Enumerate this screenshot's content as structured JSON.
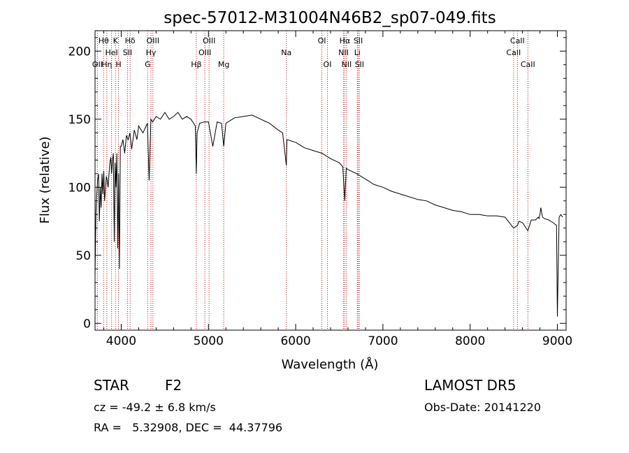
{
  "chart_data": {
    "type": "line",
    "title": "spec-57012-M31004N46B2_sp07-049.fits",
    "xlabel": "Wavelength (Å)",
    "ylabel": "Flux (relative)",
    "xlim": [
      3700,
      9100
    ],
    "ylim": [
      -5,
      215
    ],
    "xticks": [
      4000,
      5000,
      6000,
      7000,
      8000,
      9000
    ],
    "yticks": [
      0,
      50,
      100,
      150,
      200
    ],
    "xtick_labels": [
      "4000",
      "5000",
      "6000",
      "7000",
      "8000",
      "9000"
    ],
    "ytick_labels": [
      "0",
      "50",
      "100",
      "150",
      "200"
    ],
    "grid": false,
    "series": [
      {
        "x": [
          3700,
          3710,
          3720,
          3730,
          3740,
          3750,
          3760,
          3770,
          3780,
          3790,
          3800,
          3810,
          3820,
          3830,
          3840,
          3850,
          3860,
          3870,
          3880,
          3890,
          3900,
          3910,
          3920,
          3930,
          3940,
          3950,
          3960,
          3970,
          3980,
          3990,
          4000,
          4020,
          4040,
          4060,
          4080,
          4100,
          4120,
          4150,
          4180,
          4200,
          4250,
          4300,
          4320,
          4340,
          4360,
          4400,
          4450,
          4500,
          4550,
          4600,
          4650,
          4700,
          4750,
          4800,
          4830,
          4850,
          4861,
          4870,
          4900,
          4950,
          5000,
          5050,
          5100,
          5150,
          5175,
          5200,
          5250,
          5300,
          5400,
          5500,
          5600,
          5700,
          5800,
          5850,
          5893,
          5900,
          6000,
          6100,
          6200,
          6300,
          6400,
          6500,
          6540,
          6563,
          6580,
          6600,
          6700,
          6800,
          6900,
          7000,
          7100,
          7200,
          7300,
          7400,
          7500,
          7600,
          7700,
          7800,
          7900,
          8000,
          8100,
          8200,
          8300,
          8400,
          8498,
          8542,
          8560,
          8600,
          8662,
          8700,
          8750,
          8780,
          8790,
          8800,
          8810,
          8830,
          8850,
          8900,
          8950,
          8990,
          9000,
          9020,
          9040,
          9060
        ],
        "y": [
          35,
          80,
          95,
          105,
          110,
          75,
          100,
          85,
          110,
          95,
          112,
          90,
          100,
          108,
          105,
          100,
          110,
          118,
          122,
          110,
          120,
          125,
          60,
          118,
          100,
          125,
          55,
          110,
          40,
          130,
          130,
          135,
          125,
          138,
          135,
          140,
          128,
          142,
          135,
          145,
          140,
          147,
          105,
          150,
          148,
          152,
          150,
          155,
          150,
          152,
          155,
          150,
          152,
          150,
          147,
          145,
          110,
          140,
          147,
          148,
          148,
          130,
          148,
          147,
          130,
          147,
          149,
          151,
          152,
          153,
          150,
          147,
          142,
          140,
          116,
          135,
          133,
          129,
          127,
          125,
          121,
          118,
          115,
          90,
          114,
          113,
          110,
          106,
          102,
          100,
          97,
          95,
          93,
          91,
          90,
          87,
          85,
          83,
          82,
          80,
          80,
          79,
          79,
          78,
          70,
          72,
          75,
          74,
          68,
          76,
          76,
          78,
          77,
          80,
          85,
          78,
          77,
          76,
          74,
          72,
          5,
          78,
          80,
          78
        ]
      }
    ],
    "lines": [
      {
        "x": 3727,
        "label": "OII",
        "row": 2
      },
      {
        "x": 3798,
        "label": "Hθ",
        "row": 0
      },
      {
        "x": 3835,
        "label": "Hη",
        "row": 2
      },
      {
        "x": 3889,
        "label": "HeI",
        "row": 1
      },
      {
        "x": 3934,
        "label": "K",
        "row": 0
      },
      {
        "x": 3969,
        "label": "H",
        "row": 2
      },
      {
        "x": 4072,
        "label": "SII",
        "row": 1
      },
      {
        "x": 4102,
        "label": "Hδ",
        "row": 0
      },
      {
        "x": 4304,
        "label": "G",
        "row": 2
      },
      {
        "x": 4341,
        "label": "Hγ",
        "row": 1
      },
      {
        "x": 4363,
        "label": "OIII",
        "row": 0
      },
      {
        "x": 4861,
        "label": "Hβ",
        "row": 2
      },
      {
        "x": 4959,
        "label": "OIII",
        "row": 1
      },
      {
        "x": 5007,
        "label": "OIII",
        "row": 0
      },
      {
        "x": 5175,
        "label": "Mg",
        "row": 2
      },
      {
        "x": 5893,
        "label": "Na",
        "row": 1
      },
      {
        "x": 6300,
        "label": "OI",
        "row": 0
      },
      {
        "x": 6364,
        "label": "OI",
        "row": 2
      },
      {
        "x": 6548,
        "label": "NII",
        "row": 1
      },
      {
        "x": 6563,
        "label": "Hα",
        "row": 0
      },
      {
        "x": 6583,
        "label": "NII",
        "row": 2
      },
      {
        "x": 6707,
        "label": "Li",
        "row": 1
      },
      {
        "x": 6717,
        "label": "SII",
        "row": 0
      },
      {
        "x": 6731,
        "label": "SII",
        "row": 2
      },
      {
        "x": 8498,
        "label": "CaII",
        "row": 1
      },
      {
        "x": 8542,
        "label": "CaII",
        "row": 0
      },
      {
        "x": 8662,
        "label": "CaII",
        "row": 2
      }
    ],
    "line_color": "#cc0000"
  },
  "info": {
    "class_label": "STAR",
    "subclass": "F2",
    "survey": "LAMOST DR5",
    "cz": "cz = -49.2 ± 6.8 km/s",
    "obs_date": "Obs-Date: 20141220",
    "coords": "RA =   5.32908, DEC =  44.37796"
  }
}
